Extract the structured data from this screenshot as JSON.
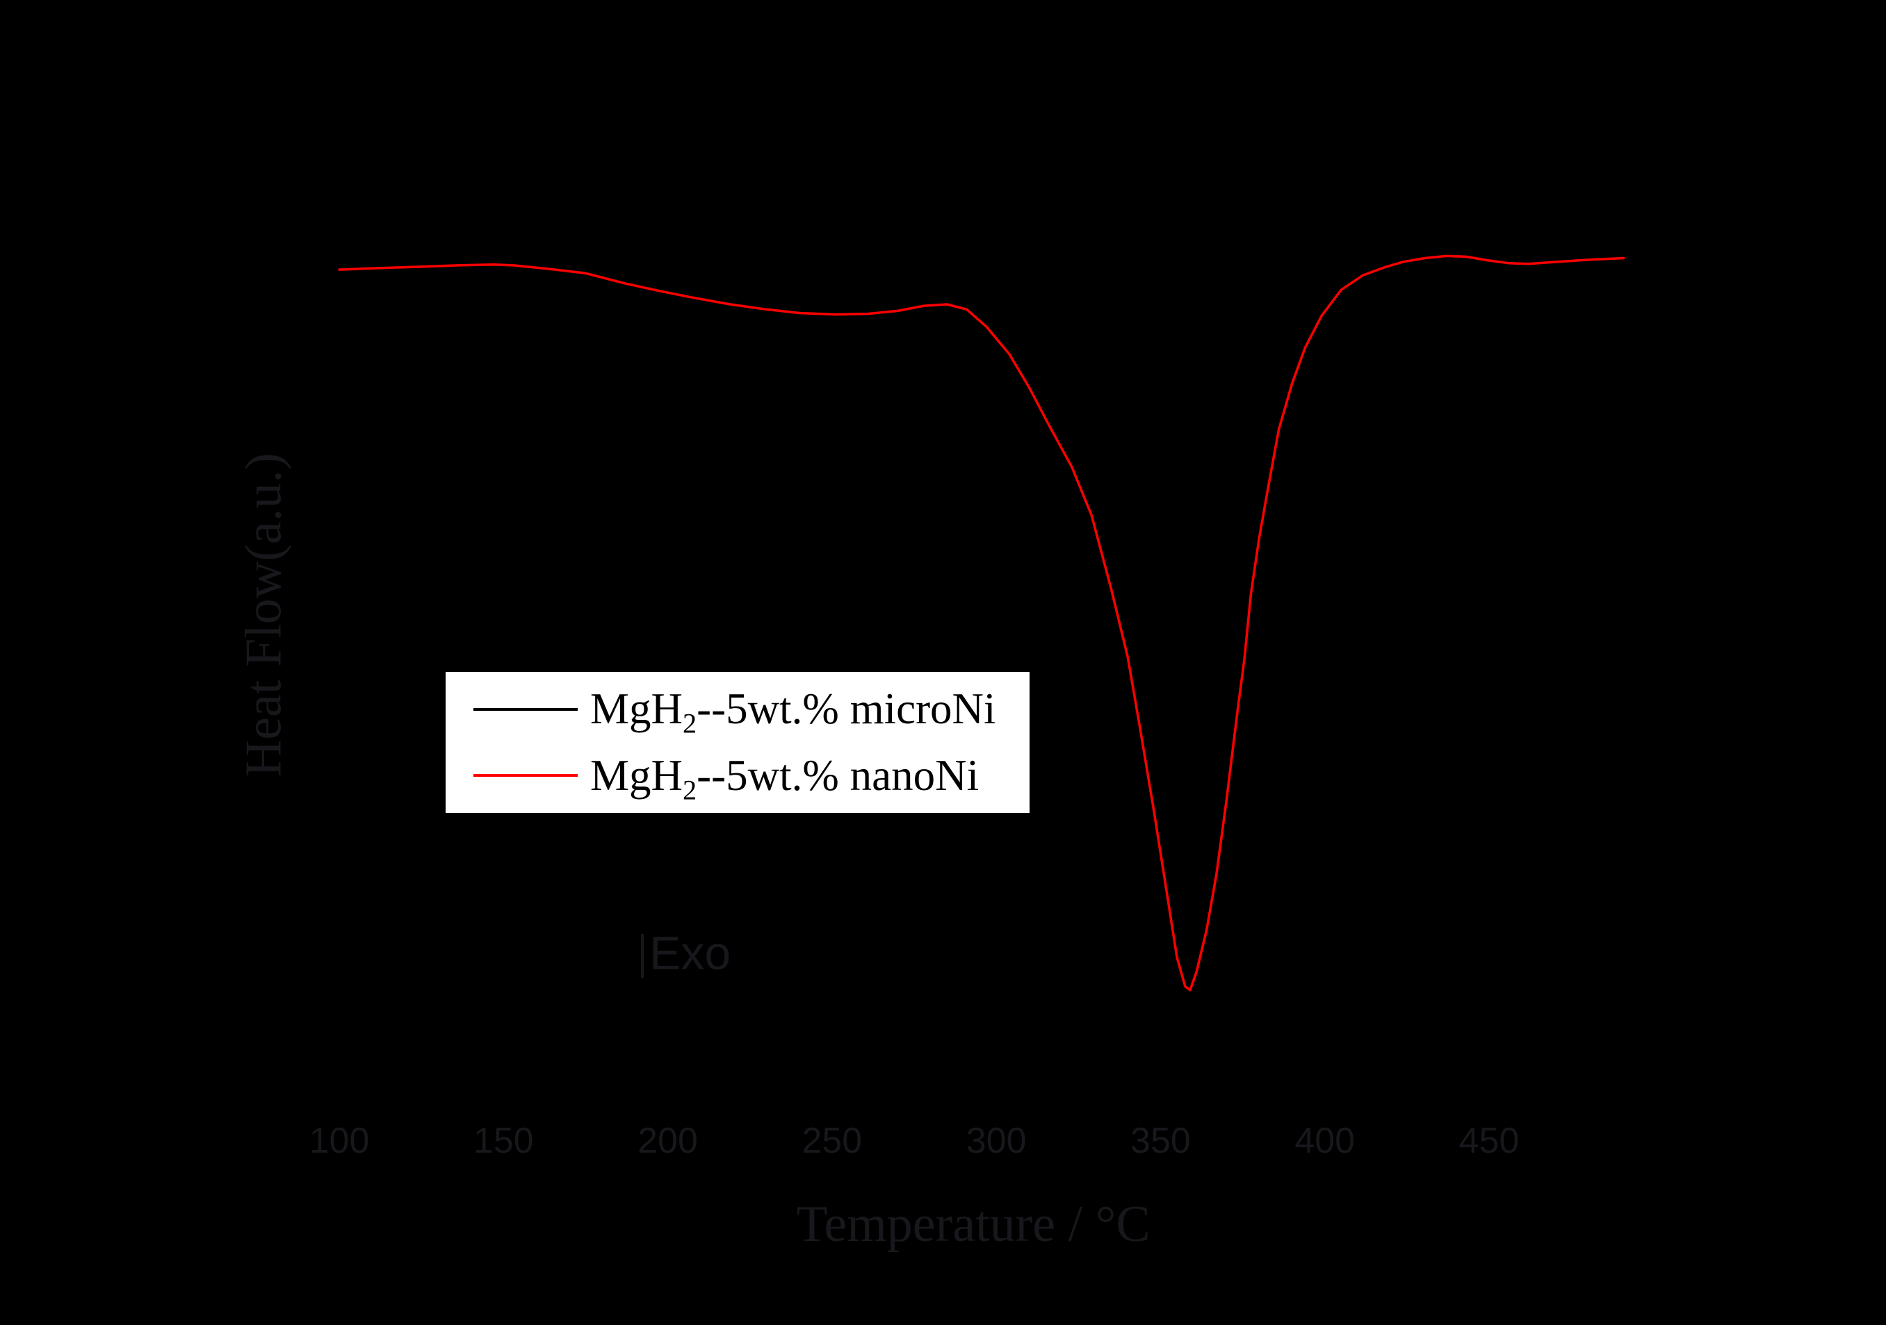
{
  "figure": {
    "background": "#000000",
    "text_color": "#17171c",
    "y_axis_title": "Heat Flow(a.u.)",
    "x_axis_title": "Temperature / °C",
    "exo_label": "Exo"
  },
  "legend": {
    "background": "#ffffff",
    "border_color": "#000000",
    "entries": [
      {
        "label_main": "MgH",
        "label_sub": "2",
        "label_rest": "--5wt.% microNi",
        "color": "#000000"
      },
      {
        "label_main": "MgH",
        "label_sub": "2",
        "label_rest": "--5wt.% nanoNi",
        "color": "#ff0000"
      }
    ]
  },
  "chart_data": {
    "type": "line",
    "title": "",
    "xlabel": "Temperature / °C",
    "ylabel": "Heat Flow(a.u.)",
    "x_ticks": [
      100,
      150,
      200,
      250,
      300,
      350,
      400,
      450
    ],
    "xlim": [
      70,
      520
    ],
    "ylim": [
      -1.35,
      0.55
    ],
    "y_units": "arbitrary units, exothermic direction marked Exo",
    "grid": false,
    "legend_position": "center-left",
    "series": [
      {
        "name": "MgH2--5wt.% microNi",
        "short": "microNi",
        "color": "#000000",
        "note": "drawn in black - not visible against black background",
        "points": []
      },
      {
        "name": "MgH2--5wt.% nanoNi",
        "short": "nanoNi",
        "color": "#ff0000",
        "peak": {
          "temperature_c": 358,
          "value": -1.0,
          "direction": "endothermic (downward)"
        },
        "points": [
          [
            100,
            -0.003
          ],
          [
            111,
            -0.001
          ],
          [
            124,
            0.001
          ],
          [
            136,
            0.003
          ],
          [
            147,
            0.004
          ],
          [
            153,
            0.003
          ],
          [
            164,
            -0.002
          ],
          [
            175,
            -0.008
          ],
          [
            187,
            -0.022
          ],
          [
            198,
            -0.033
          ],
          [
            208,
            -0.042
          ],
          [
            219,
            -0.051
          ],
          [
            230,
            -0.058
          ],
          [
            240,
            -0.063
          ],
          [
            251,
            -0.065
          ],
          [
            261,
            -0.064
          ],
          [
            270,
            -0.06
          ],
          [
            278,
            -0.053
          ],
          [
            285,
            -0.051
          ],
          [
            291,
            -0.058
          ],
          [
            297,
            -0.082
          ],
          [
            304,
            -0.12
          ],
          [
            310,
            -0.166
          ],
          [
            316,
            -0.218
          ],
          [
            323,
            -0.276
          ],
          [
            329,
            -0.343
          ],
          [
            335,
            -0.445
          ],
          [
            340,
            -0.539
          ],
          [
            344,
            -0.644
          ],
          [
            348,
            -0.753
          ],
          [
            352,
            -0.868
          ],
          [
            355,
            -0.955
          ],
          [
            357.5,
            -0.995
          ],
          [
            359,
            -1.0
          ],
          [
            361,
            -0.974
          ],
          [
            364,
            -0.917
          ],
          [
            367,
            -0.84
          ],
          [
            370,
            -0.74
          ],
          [
            373.5,
            -0.611
          ],
          [
            375.5,
            -0.543
          ],
          [
            377.5,
            -0.452
          ],
          [
            380,
            -0.375
          ],
          [
            383,
            -0.298
          ],
          [
            386,
            -0.224
          ],
          [
            390,
            -0.161
          ],
          [
            394,
            -0.111
          ],
          [
            399,
            -0.067
          ],
          [
            405,
            -0.031
          ],
          [
            411.5,
            -0.011
          ],
          [
            418,
            0.0
          ],
          [
            424,
            0.008
          ],
          [
            430.5,
            0.013
          ],
          [
            437,
            0.016
          ],
          [
            443,
            0.015
          ],
          [
            449.5,
            0.01
          ],
          [
            456,
            0.006
          ],
          [
            462,
            0.005
          ],
          [
            471,
            0.008
          ],
          [
            481,
            0.011
          ],
          [
            491,
            0.013
          ]
        ]
      }
    ]
  }
}
